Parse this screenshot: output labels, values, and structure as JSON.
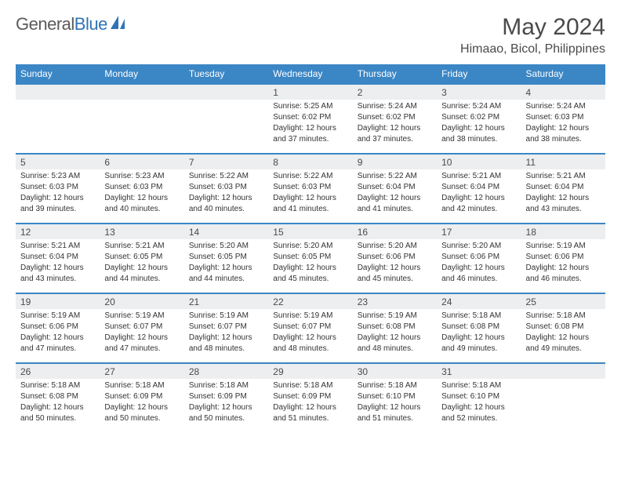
{
  "logo": {
    "text_left": "General",
    "text_right": "Blue"
  },
  "title": "May 2024",
  "location": "Himaao, Bicol, Philippines",
  "header_bg": "#3b86c5",
  "dayrow_bg": "#eceeef",
  "border_color": "#3b86c5",
  "weekdays": [
    "Sunday",
    "Monday",
    "Tuesday",
    "Wednesday",
    "Thursday",
    "Friday",
    "Saturday"
  ],
  "weeks": [
    [
      null,
      null,
      null,
      {
        "date": "1",
        "sunrise": "5:25 AM",
        "sunset": "6:02 PM",
        "daylight": "12 hours and 37 minutes."
      },
      {
        "date": "2",
        "sunrise": "5:24 AM",
        "sunset": "6:02 PM",
        "daylight": "12 hours and 37 minutes."
      },
      {
        "date": "3",
        "sunrise": "5:24 AM",
        "sunset": "6:02 PM",
        "daylight": "12 hours and 38 minutes."
      },
      {
        "date": "4",
        "sunrise": "5:24 AM",
        "sunset": "6:03 PM",
        "daylight": "12 hours and 38 minutes."
      }
    ],
    [
      {
        "date": "5",
        "sunrise": "5:23 AM",
        "sunset": "6:03 PM",
        "daylight": "12 hours and 39 minutes."
      },
      {
        "date": "6",
        "sunrise": "5:23 AM",
        "sunset": "6:03 PM",
        "daylight": "12 hours and 40 minutes."
      },
      {
        "date": "7",
        "sunrise": "5:22 AM",
        "sunset": "6:03 PM",
        "daylight": "12 hours and 40 minutes."
      },
      {
        "date": "8",
        "sunrise": "5:22 AM",
        "sunset": "6:03 PM",
        "daylight": "12 hours and 41 minutes."
      },
      {
        "date": "9",
        "sunrise": "5:22 AM",
        "sunset": "6:04 PM",
        "daylight": "12 hours and 41 minutes."
      },
      {
        "date": "10",
        "sunrise": "5:21 AM",
        "sunset": "6:04 PM",
        "daylight": "12 hours and 42 minutes."
      },
      {
        "date": "11",
        "sunrise": "5:21 AM",
        "sunset": "6:04 PM",
        "daylight": "12 hours and 43 minutes."
      }
    ],
    [
      {
        "date": "12",
        "sunrise": "5:21 AM",
        "sunset": "6:04 PM",
        "daylight": "12 hours and 43 minutes."
      },
      {
        "date": "13",
        "sunrise": "5:21 AM",
        "sunset": "6:05 PM",
        "daylight": "12 hours and 44 minutes."
      },
      {
        "date": "14",
        "sunrise": "5:20 AM",
        "sunset": "6:05 PM",
        "daylight": "12 hours and 44 minutes."
      },
      {
        "date": "15",
        "sunrise": "5:20 AM",
        "sunset": "6:05 PM",
        "daylight": "12 hours and 45 minutes."
      },
      {
        "date": "16",
        "sunrise": "5:20 AM",
        "sunset": "6:06 PM",
        "daylight": "12 hours and 45 minutes."
      },
      {
        "date": "17",
        "sunrise": "5:20 AM",
        "sunset": "6:06 PM",
        "daylight": "12 hours and 46 minutes."
      },
      {
        "date": "18",
        "sunrise": "5:19 AM",
        "sunset": "6:06 PM",
        "daylight": "12 hours and 46 minutes."
      }
    ],
    [
      {
        "date": "19",
        "sunrise": "5:19 AM",
        "sunset": "6:06 PM",
        "daylight": "12 hours and 47 minutes."
      },
      {
        "date": "20",
        "sunrise": "5:19 AM",
        "sunset": "6:07 PM",
        "daylight": "12 hours and 47 minutes."
      },
      {
        "date": "21",
        "sunrise": "5:19 AM",
        "sunset": "6:07 PM",
        "daylight": "12 hours and 48 minutes."
      },
      {
        "date": "22",
        "sunrise": "5:19 AM",
        "sunset": "6:07 PM",
        "daylight": "12 hours and 48 minutes."
      },
      {
        "date": "23",
        "sunrise": "5:19 AM",
        "sunset": "6:08 PM",
        "daylight": "12 hours and 48 minutes."
      },
      {
        "date": "24",
        "sunrise": "5:18 AM",
        "sunset": "6:08 PM",
        "daylight": "12 hours and 49 minutes."
      },
      {
        "date": "25",
        "sunrise": "5:18 AM",
        "sunset": "6:08 PM",
        "daylight": "12 hours and 49 minutes."
      }
    ],
    [
      {
        "date": "26",
        "sunrise": "5:18 AM",
        "sunset": "6:08 PM",
        "daylight": "12 hours and 50 minutes."
      },
      {
        "date": "27",
        "sunrise": "5:18 AM",
        "sunset": "6:09 PM",
        "daylight": "12 hours and 50 minutes."
      },
      {
        "date": "28",
        "sunrise": "5:18 AM",
        "sunset": "6:09 PM",
        "daylight": "12 hours and 50 minutes."
      },
      {
        "date": "29",
        "sunrise": "5:18 AM",
        "sunset": "6:09 PM",
        "daylight": "12 hours and 51 minutes."
      },
      {
        "date": "30",
        "sunrise": "5:18 AM",
        "sunset": "6:10 PM",
        "daylight": "12 hours and 51 minutes."
      },
      {
        "date": "31",
        "sunrise": "5:18 AM",
        "sunset": "6:10 PM",
        "daylight": "12 hours and 52 minutes."
      },
      null
    ]
  ]
}
